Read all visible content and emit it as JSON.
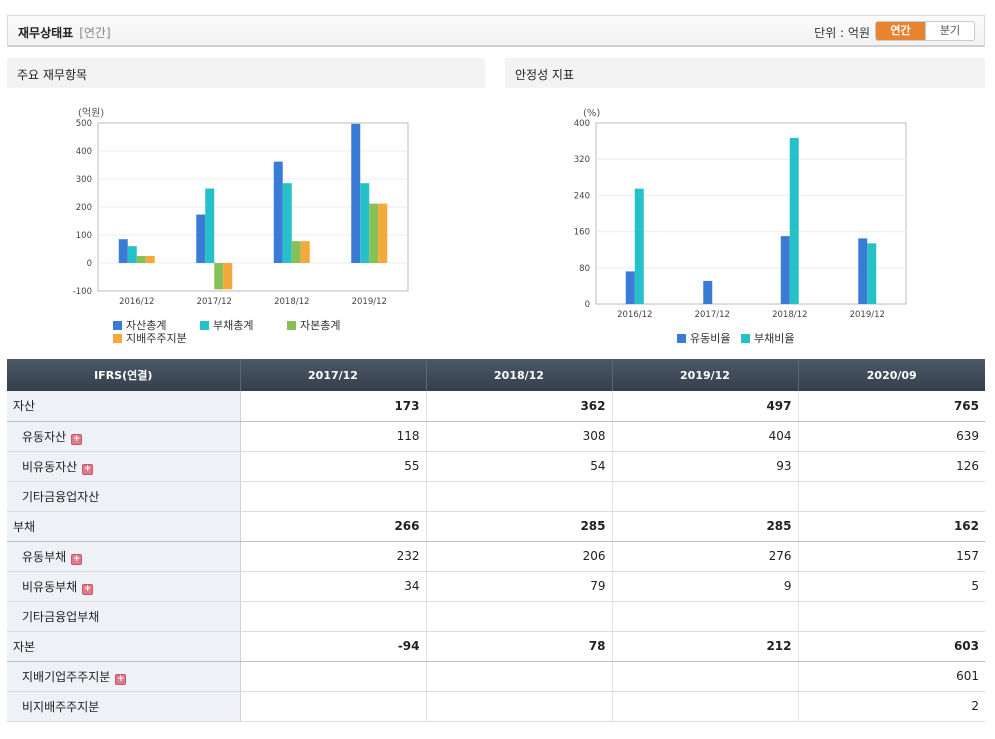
{
  "header": {
    "title": "재무상태표",
    "subtitle": "[연간]",
    "unit_label": "단위 : 억원",
    "tabs": [
      "연간",
      "분기"
    ],
    "accent": "#e8842f"
  },
  "panels": {
    "left_title": "주요 재무항목",
    "right_title": "안정성 지표"
  },
  "chart_data": [
    {
      "type": "bar",
      "ylabel": "(억원)",
      "categories": [
        "2016/12",
        "2017/12",
        "2018/12",
        "2019/12"
      ],
      "ylim": [
        -100,
        500
      ],
      "yticks": [
        -100,
        0,
        100,
        200,
        300,
        400,
        500
      ],
      "grid": true,
      "legend": "bottom-left",
      "series": [
        {
          "name": "자산총계",
          "color": "#3a7bd5",
          "values": [
            85,
            173,
            362,
            497
          ]
        },
        {
          "name": "부채총계",
          "color": "#26c0c8",
          "values": [
            60,
            266,
            285,
            285
          ]
        },
        {
          "name": "자본총계",
          "color": "#88c057",
          "values": [
            25,
            -94,
            78,
            212
          ]
        },
        {
          "name": "지배주주지분",
          "color": "#f5a93a",
          "values": [
            25,
            -94,
            78,
            212
          ]
        }
      ]
    },
    {
      "type": "bar",
      "ylabel": "(%)",
      "categories": [
        "2016/12",
        "2017/12",
        "2018/12",
        "2019/12"
      ],
      "ylim": [
        0,
        400
      ],
      "yticks": [
        0,
        80,
        160,
        240,
        320,
        400
      ],
      "grid": true,
      "legend": "bottom-center",
      "series": [
        {
          "name": "유동비율",
          "color": "#3a7bd5",
          "values": [
            72,
            51,
            150,
            145
          ]
        },
        {
          "name": "부채비율",
          "color": "#26c0c8",
          "values": [
            255,
            0,
            367,
            134
          ]
        }
      ]
    }
  ],
  "table": {
    "header": [
      "IFRS(연결)",
      "2017/12",
      "2018/12",
      "2019/12",
      "2020/09"
    ],
    "rows": [
      {
        "label": "자산",
        "values": [
          "173",
          "362",
          "497",
          "765"
        ],
        "bold": true,
        "sub": false,
        "expand": false
      },
      {
        "label": "유동자산",
        "values": [
          "118",
          "308",
          "404",
          "639"
        ],
        "bold": false,
        "sub": true,
        "expand": true
      },
      {
        "label": "비유동자산",
        "values": [
          "55",
          "54",
          "93",
          "126"
        ],
        "bold": false,
        "sub": true,
        "expand": true
      },
      {
        "label": "기타금융업자산",
        "values": [
          "",
          "",
          "",
          ""
        ],
        "bold": false,
        "sub": true,
        "expand": false
      },
      {
        "label": "부채",
        "values": [
          "266",
          "285",
          "285",
          "162"
        ],
        "bold": true,
        "sub": false,
        "expand": false
      },
      {
        "label": "유동부채",
        "values": [
          "232",
          "206",
          "276",
          "157"
        ],
        "bold": false,
        "sub": true,
        "expand": true
      },
      {
        "label": "비유동부채",
        "values": [
          "34",
          "79",
          "9",
          "5"
        ],
        "bold": false,
        "sub": true,
        "expand": true
      },
      {
        "label": "기타금융업부채",
        "values": [
          "",
          "",
          "",
          ""
        ],
        "bold": false,
        "sub": true,
        "expand": false
      },
      {
        "label": "자본",
        "values": [
          "-94",
          "78",
          "212",
          "603"
        ],
        "bold": true,
        "sub": false,
        "expand": false
      },
      {
        "label": "지배기업주주지분",
        "values": [
          "",
          "",
          "",
          "601"
        ],
        "bold": false,
        "sub": true,
        "expand": true
      },
      {
        "label": "비지배주주지분",
        "values": [
          "",
          "",
          "",
          "2"
        ],
        "bold": false,
        "sub": true,
        "expand": false
      }
    ]
  }
}
